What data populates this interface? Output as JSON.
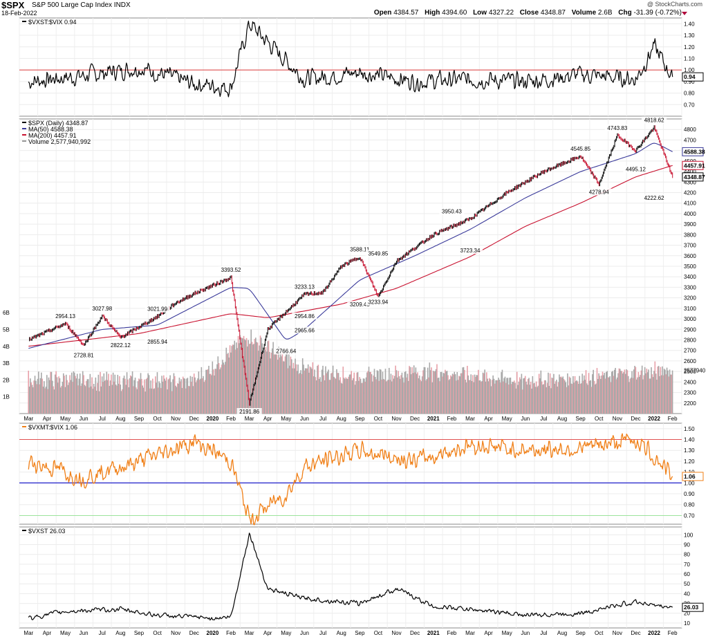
{
  "header": {
    "symbol": "$SPX",
    "name": "S&P 500 Large Cap Index",
    "exchange": "INDX",
    "date": "18-Feb-2022",
    "credit": "@ StockCharts.com",
    "open_label": "Open",
    "open": "4384.57",
    "high_label": "High",
    "high": "4394.60",
    "low_label": "Low",
    "low": "4327.22",
    "close_label": "Close",
    "close": "4348.87",
    "volume_label": "Volume",
    "volume": "2.6B",
    "chg_label": "Chg",
    "chg": "-31.39 (-0.72%)"
  },
  "x_axis": {
    "months": [
      "Mar",
      "Apr",
      "May",
      "Jun",
      "Jul",
      "Aug",
      "Sep",
      "Oct",
      "Nov",
      "Dec",
      "2020",
      "Feb",
      "Mar",
      "Apr",
      "May",
      "Jun",
      "Jul",
      "Aug",
      "Sep",
      "Oct",
      "Nov",
      "Dec",
      "2021",
      "Feb",
      "Mar",
      "Apr",
      "May",
      "Jun",
      "Jul",
      "Aug",
      "Sep",
      "Oct",
      "Nov",
      "Dec",
      "2022",
      "Feb"
    ],
    "bold": [
      "2020",
      "2021",
      "2022"
    ]
  },
  "colors": {
    "price_up": "#000000",
    "price_down": "#c8102e",
    "ma50": "#3a3a9a",
    "ma200": "#c8102e",
    "ratio1_line": "#000000",
    "ratio2_line": "#f07f16",
    "reference_red": "#e05050",
    "reference_blue": "#2f2fcf",
    "reference_green": "#9be39b",
    "volume_up": "#a8a8a8",
    "volume_down": "#e8a0a8"
  },
  "chart_data": [
    {
      "type": "line",
      "panel": "ratio1",
      "label": "$VXST:$VIX 0.94",
      "last_value": "0.94",
      "ylim": [
        0.6,
        1.45
      ],
      "yticks": [
        "1.40",
        "1.30",
        "1.20",
        "1.10",
        "1.00",
        "0.90",
        "0.80",
        "0.70"
      ],
      "reference_line": 1.0,
      "x": [
        "2019-03",
        "2019-06",
        "2019-09",
        "2019-12",
        "2020-02",
        "2020-03",
        "2020-06",
        "2020-09",
        "2020-12",
        "2021-03",
        "2021-06",
        "2021-09",
        "2021-12",
        "2022-01",
        "2022-02"
      ],
      "values": [
        0.9,
        0.95,
        1.02,
        0.88,
        0.85,
        1.4,
        0.92,
        0.98,
        0.9,
        0.92,
        0.9,
        0.96,
        0.92,
        1.2,
        0.94
      ]
    },
    {
      "type": "line",
      "panel": "price",
      "label": "$SPX (Daily) 4348.87",
      "ylim": [
        2100,
        4900
      ],
      "yticks": [
        "4800",
        "4700",
        "4600",
        "4500",
        "4400",
        "4300",
        "4200",
        "4100",
        "4000",
        "3900",
        "3800",
        "3700",
        "3600",
        "3500",
        "3400",
        "3300",
        "3200",
        "3100",
        "3000",
        "2900",
        "2800",
        "2700",
        "2600",
        "2500",
        "2400",
        "2300",
        "2200"
      ],
      "series": [
        {
          "name": "$SPX (Daily) 4348.87",
          "x": [
            "2019-03",
            "2019-05",
            "2019-06",
            "2019-07",
            "2019-08",
            "2019-10",
            "2019-11",
            "2019-12",
            "2020-02",
            "2020-03",
            "2020-04",
            "2020-06",
            "2020-07",
            "2020-08",
            "2020-09",
            "2020-10",
            "2020-11",
            "2021-01",
            "2021-03",
            "2021-05",
            "2021-07",
            "2021-09",
            "2021-10",
            "2021-11",
            "2021-12",
            "2022-01",
            "2022-02"
          ],
          "values": [
            2800,
            2954.13,
            2750,
            3027.98,
            2822.12,
            3021.99,
            3150,
            3240,
            3393.52,
            2191.86,
            2900,
            3233.13,
            3250,
            3500,
            3588.11,
            3209.45,
            3549.85,
            3800,
            3950.43,
            4200,
            4400,
            4545.85,
            4278.94,
            4743.83,
            4600,
            4818.62,
            4348.87
          ]
        },
        {
          "name": "MA(50) 4588.38",
          "x": [
            "2019-03",
            "2019-07",
            "2019-10",
            "2020-02",
            "2020-03",
            "2020-05",
            "2020-06",
            "2020-09",
            "2020-12",
            "2021-03",
            "2021-06",
            "2021-09",
            "2021-12",
            "2022-01",
            "2022-02"
          ],
          "values": [
            2720,
            2900,
            2940,
            3300,
            3290,
            2790,
            2900,
            3370,
            3600,
            3850,
            4150,
            4400,
            4570,
            4680,
            4588.38
          ]
        },
        {
          "name": "MA(200) 4457.91",
          "x": [
            "2019-03",
            "2019-09",
            "2020-02",
            "2020-04",
            "2020-08",
            "2020-11",
            "2021-03",
            "2021-06",
            "2021-09",
            "2021-12",
            "2022-02"
          ],
          "values": [
            2740,
            2860,
            3050,
            3010,
            3140,
            3290,
            3590,
            3880,
            4100,
            4350,
            4457.91
          ]
        },
        {
          "name": "Volume 2,577,940,992",
          "x": [
            "2019-03",
            "2019-12",
            "2020-03",
            "2020-06",
            "2020-09",
            "2021-01",
            "2021-06",
            "2021-09",
            "2021-12",
            "2022-02"
          ],
          "values": [
            2.0,
            1.9,
            4.6,
            2.6,
            2.2,
            2.5,
            1.9,
            2.1,
            2.4,
            2.58
          ]
        }
      ],
      "annotations": [
        {
          "x": "2019-05",
          "y": 2954.13,
          "text": "2954.13"
        },
        {
          "x": "2019-06",
          "y": 2728.81,
          "text": "2728.81"
        },
        {
          "x": "2019-07",
          "y": 3027.98,
          "text": "3027.98"
        },
        {
          "x": "2019-08",
          "y": 2822.12,
          "text": "2822.12"
        },
        {
          "x": "2019-10",
          "y": 3021.99,
          "text": "3021.99"
        },
        {
          "x": "2019-10",
          "y": 2855.94,
          "text": "2855.94"
        },
        {
          "x": "2020-02",
          "y": 3393.52,
          "text": "3393.52"
        },
        {
          "x": "2020-03",
          "y": 2191.86,
          "text": "2191.86"
        },
        {
          "x": "2020-06",
          "y": 2954.86,
          "text": "2954.86"
        },
        {
          "x": "2020-05",
          "y": 2766.64,
          "text": "2766.64"
        },
        {
          "x": "2020-06",
          "y": 2965.66,
          "text": "2965.66"
        },
        {
          "x": "2020-06",
          "y": 3233.13,
          "text": "3233.13"
        },
        {
          "x": "2020-09",
          "y": 3588.11,
          "text": "3588.11"
        },
        {
          "x": "2020-09",
          "y": 3209.45,
          "text": "3209.45"
        },
        {
          "x": "2020-10",
          "y": 3549.85,
          "text": "3549.85"
        },
        {
          "x": "2020-10",
          "y": 3233.94,
          "text": "3233.94"
        },
        {
          "x": "2021-02",
          "y": 3950.43,
          "text": "3950.43"
        },
        {
          "x": "2021-03",
          "y": 3723.34,
          "text": "3723.34"
        },
        {
          "x": "2021-09",
          "y": 4545.85,
          "text": "4545.85"
        },
        {
          "x": "2021-10",
          "y": 4278.94,
          "text": "4278.94"
        },
        {
          "x": "2021-11",
          "y": 4743.83,
          "text": "4743.83"
        },
        {
          "x": "2021-12",
          "y": 4495.12,
          "text": "4495.12"
        },
        {
          "x": "2022-01",
          "y": 4818.62,
          "text": "4818.62"
        },
        {
          "x": "2022-01",
          "y": 4222.62,
          "text": "4222.62"
        }
      ],
      "right_labels": [
        "4588.38",
        "4457.91",
        "4348.87"
      ],
      "volume_ticks": [
        "6B",
        "5B",
        "4B",
        "3B",
        "2B",
        "1B"
      ],
      "volume_right_label": "2577940",
      "legend_entries": [
        "$SPX (Daily) 4348.87",
        "MA(50) 4588.38",
        "MA(200) 4457.91",
        "Volume 2,577,940,992"
      ]
    },
    {
      "type": "line",
      "panel": "ratio2",
      "label": "$VXMT:$VIX 1.06",
      "last_value": "1.06",
      "ylim": [
        0.62,
        1.55
      ],
      "yticks": [
        "1.50",
        "1.40",
        "1.30",
        "1.20",
        "1.10",
        "1.00",
        "0.90",
        "0.80",
        "0.70"
      ],
      "reference_lines": [
        1.4,
        1.0,
        0.7
      ],
      "x": [
        "2019-03",
        "2019-06",
        "2019-09",
        "2019-12",
        "2020-02",
        "2020-03",
        "2020-05",
        "2020-06",
        "2020-09",
        "2020-12",
        "2021-03",
        "2021-06",
        "2021-09",
        "2021-12",
        "2022-01",
        "2022-02"
      ],
      "values": [
        1.2,
        1.05,
        1.2,
        1.38,
        1.2,
        0.66,
        0.9,
        1.15,
        1.3,
        1.2,
        1.35,
        1.3,
        1.32,
        1.4,
        1.25,
        1.06
      ]
    },
    {
      "type": "line",
      "panel": "vxst",
      "label": "$VXST 26.03",
      "last_value": "26.03",
      "ylim": [
        5,
        108
      ],
      "yticks": [
        "100",
        "90",
        "80",
        "70",
        "60",
        "50",
        "40",
        "30",
        "20",
        "10"
      ],
      "x": [
        "2019-03",
        "2019-05",
        "2019-08",
        "2019-10",
        "2020-01",
        "2020-02",
        "2020-03",
        "2020-04",
        "2020-06",
        "2020-09",
        "2020-11",
        "2021-01",
        "2021-03",
        "2021-06",
        "2021-09",
        "2021-12",
        "2022-01",
        "2022-02"
      ],
      "values": [
        15,
        22,
        24,
        18,
        15,
        16,
        102,
        45,
        35,
        30,
        45,
        27,
        24,
        18,
        20,
        32,
        28,
        26.03
      ]
    }
  ]
}
